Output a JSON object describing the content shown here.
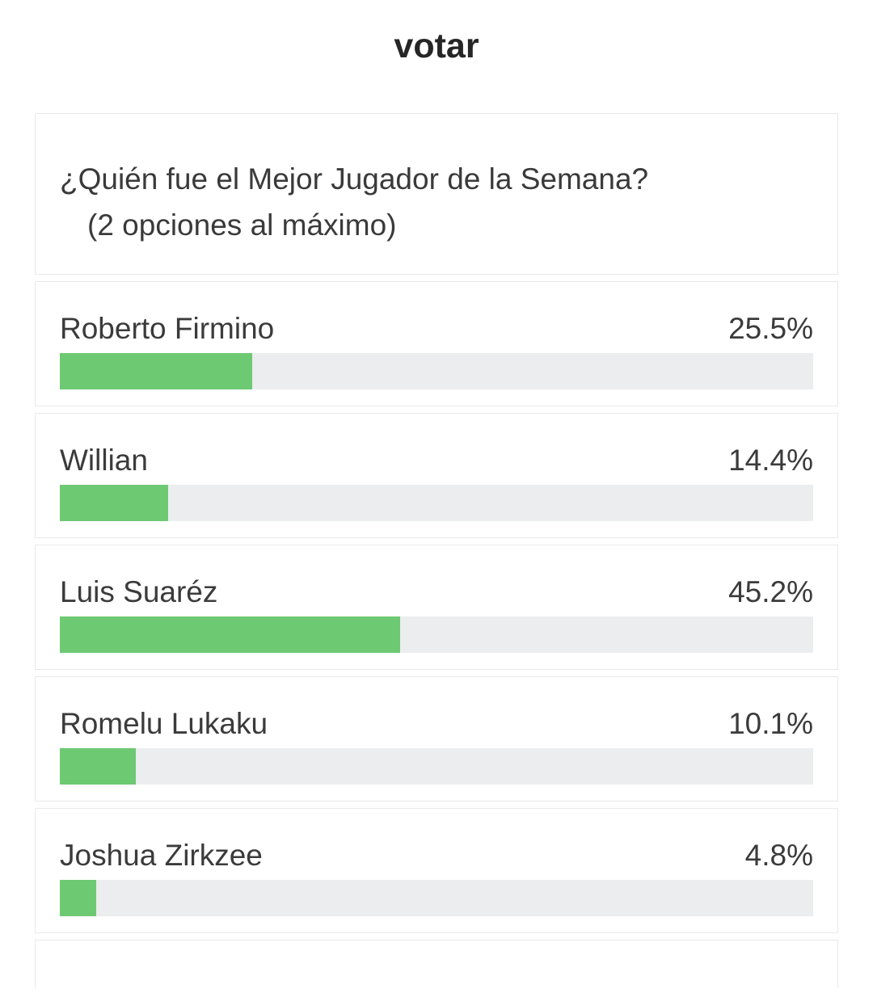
{
  "title": "votar",
  "poll": {
    "question_line1": "¿Quién fue el Mejor Jugador de la Semana?",
    "question_line2": "(2 opciones al máximo)",
    "options": [
      {
        "label": "Roberto Firmino",
        "percent": "25.5%",
        "value": 25.5
      },
      {
        "label": "Willian",
        "percent": "14.4%",
        "value": 14.4
      },
      {
        "label": "Luis Suaréz",
        "percent": "45.2%",
        "value": 45.2
      },
      {
        "label": "Romelu Lukaku",
        "percent": "10.1%",
        "value": 10.1
      },
      {
        "label": "Joshua Zirkzee",
        "percent": "4.8%",
        "value": 4.8
      }
    ],
    "colors": {
      "bar_fill": "#6ec973",
      "bar_track": "#ebedee"
    }
  }
}
